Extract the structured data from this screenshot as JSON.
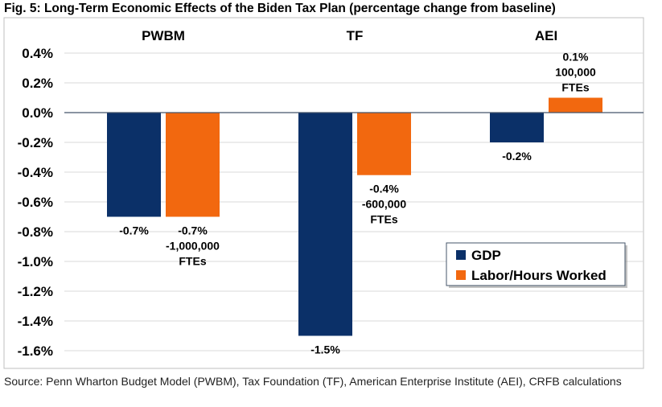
{
  "chart_data": {
    "type": "bar",
    "title": "Fig. 5: Long-Term Economic Effects of the Biden Tax Plan (percentage change from baseline)",
    "categories": [
      "PWBM",
      "TF",
      "AEI"
    ],
    "ylim": [
      -1.6,
      0.4
    ],
    "yticks": [
      "0.4%",
      "0.2%",
      "0.0%",
      "-0.2%",
      "-0.4%",
      "-0.6%",
      "-0.8%",
      "-1.0%",
      "-1.2%",
      "-1.4%",
      "-1.6%"
    ],
    "ytick_values": [
      0.4,
      0.2,
      0,
      -0.2,
      -0.4,
      -0.6,
      -0.8,
      -1.0,
      -1.2,
      -1.4,
      -1.6
    ],
    "grid": true,
    "legend_position": "bottom-right",
    "series": [
      {
        "name": "GDP",
        "color": "#0b3068",
        "values": [
          -0.7,
          -1.5,
          -0.2
        ],
        "labels": [
          [
            "-0.7%"
          ],
          [
            "-1.5%"
          ],
          [
            "-0.2%"
          ]
        ]
      },
      {
        "name": "Labor/Hours Worked",
        "color": "#f2680f",
        "values": [
          -0.7,
          -0.42,
          0.1
        ],
        "labels": [
          [
            "-0.7%",
            "-1,000,000",
            "FTEs"
          ],
          [
            "-0.4%",
            "-600,000",
            "FTEs"
          ],
          [
            "0.1%",
            "100,000",
            "FTEs"
          ]
        ]
      }
    ],
    "source": "Source: Penn Wharton Budget Model (PWBM), Tax Foundation (TF), American Enterprise Institute (AEI), CRFB calculations"
  }
}
